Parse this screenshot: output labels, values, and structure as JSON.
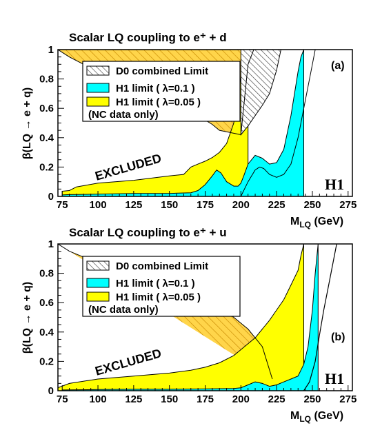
{
  "chart_data": [
    {
      "type": "area",
      "panel": "(a)",
      "title": "Scalar LQ coupling to e⁺ + d",
      "xlabel": "M_LQ (GeV)",
      "ylabel": "β(LQ → e + q)",
      "xlim": [
        72,
        278
      ],
      "ylim": [
        0,
        1
      ],
      "xticks": [
        75,
        100,
        125,
        150,
        175,
        200,
        225,
        250,
        275
      ],
      "yticks": [
        0,
        0.2,
        0.4,
        0.6,
        0.8,
        1
      ],
      "logo": "H1",
      "excluded_label": "EXCLUDED",
      "legend": {
        "d0": "D0 combined Limit",
        "cyan": "H1 limit ( λ=0.1 )",
        "yellow": "H1 limit ( λ=0.05 )",
        "note": "(NC data only)"
      },
      "series": [
        {
          "name": "H1 limit ( λ=0.05 )",
          "color": "#ffff00",
          "x": [
            75,
            80,
            85,
            100,
            125,
            150,
            160,
            165,
            170,
            175,
            180,
            185,
            190,
            195,
            199,
            202,
            205
          ],
          "y": [
            0.035,
            0.04,
            0.065,
            0.09,
            0.11,
            0.14,
            0.15,
            0.2,
            0.22,
            0.24,
            0.265,
            0.3,
            0.36,
            0.5,
            0.75,
            0.92,
            1.0
          ]
        },
        {
          "name": "H1 limit ( λ=0.1 )",
          "color": "#00ffff",
          "x": [
            75,
            80,
            100,
            125,
            150,
            165,
            170,
            175,
            180,
            183,
            186,
            190,
            195,
            198,
            200,
            202,
            205,
            210,
            215,
            220,
            225,
            230,
            235,
            240,
            242,
            244
          ],
          "y": [
            0.01,
            0.012,
            0.015,
            0.02,
            0.02,
            0.025,
            0.04,
            0.08,
            0.14,
            0.18,
            0.16,
            0.1,
            0.07,
            0.07,
            0.09,
            0.14,
            0.22,
            0.28,
            0.26,
            0.22,
            0.23,
            0.32,
            0.55,
            0.85,
            0.95,
            1.0
          ]
        },
        {
          "name": "outer contour",
          "color": "#000000",
          "x": [
            200,
            205,
            210,
            213,
            216,
            220,
            225,
            230,
            235,
            240,
            245,
            250,
            252
          ],
          "y": [
            0.0,
            0.1,
            0.18,
            0.2,
            0.19,
            0.15,
            0.13,
            0.15,
            0.22,
            0.4,
            0.65,
            0.9,
            1.0
          ]
        },
        {
          "name": "D0 combined Limit",
          "color": "hatched",
          "x": [
            200,
            205,
            210,
            215,
            220,
            225,
            228
          ],
          "y": [
            0.42,
            0.48,
            0.55,
            0.62,
            0.7,
            0.86,
            1.0
          ]
        },
        {
          "name": "excluded boundary",
          "color": "#000000",
          "x": [
            72,
            80,
            100,
            125,
            150,
            160,
            170,
            175,
            180,
            185,
            190,
            195,
            200,
            205,
            209
          ],
          "y": [
            1.0,
            0.95,
            0.85,
            0.75,
            0.64,
            0.6,
            0.54,
            0.52,
            0.49,
            0.45,
            0.44,
            0.43,
            0.42,
            0.9,
            1.0
          ]
        }
      ]
    },
    {
      "type": "area",
      "panel": "(b)",
      "title": "Scalar LQ coupling to e⁺ + u",
      "xlabel": "M_LQ (GeV)",
      "ylabel": "β(LQ → e + q)",
      "xlim": [
        72,
        278
      ],
      "ylim": [
        0,
        1
      ],
      "xticks": [
        75,
        100,
        125,
        150,
        175,
        200,
        225,
        250,
        275
      ],
      "yticks": [
        0,
        0.2,
        0.4,
        0.6,
        0.8,
        1
      ],
      "logo": "H1",
      "excluded_label": "EXCLUDED",
      "legend": {
        "d0": "D0 combined Limit",
        "cyan": "H1 limit ( λ=0.1 )",
        "yellow": "H1 limit ( λ=0.05 )",
        "note": "(NC data only)"
      },
      "series": [
        {
          "name": "H1 limit ( λ=0.05 )",
          "color": "#ffff00",
          "x": [
            72,
            80,
            100,
            125,
            150,
            165,
            175,
            185,
            195,
            200,
            205,
            210,
            215,
            220,
            225,
            230,
            235,
            240,
            242,
            244
          ],
          "y": [
            0.02,
            0.05,
            0.08,
            0.1,
            0.12,
            0.14,
            0.16,
            0.19,
            0.24,
            0.28,
            0.32,
            0.36,
            0.42,
            0.48,
            0.55,
            0.62,
            0.72,
            0.82,
            0.92,
            1.0
          ]
        },
        {
          "name": "H1 limit ( λ=0.1 )",
          "color": "#00ffff",
          "x": [
            75,
            100,
            125,
            150,
            175,
            195,
            200,
            205,
            210,
            215,
            220,
            225,
            230,
            235,
            240,
            244,
            247,
            250,
            252,
            254
          ],
          "y": [
            0.005,
            0.008,
            0.01,
            0.01,
            0.012,
            0.015,
            0.02,
            0.04,
            0.06,
            0.05,
            0.03,
            0.04,
            0.06,
            0.08,
            0.1,
            0.18,
            0.3,
            0.55,
            0.8,
            1.0
          ]
        },
        {
          "name": "outer contour",
          "color": "#000000",
          "x": [
            244,
            248,
            252,
            255,
            258,
            261,
            264,
            267
          ],
          "y": [
            0.0,
            0.06,
            0.2,
            0.38,
            0.55,
            0.7,
            0.85,
            1.0
          ]
        },
        {
          "name": "excluded boundary",
          "color": "#000000",
          "x": [
            72,
            80,
            100,
            125,
            150,
            165,
            180,
            195,
            205,
            215,
            222
          ],
          "y": [
            1.0,
            0.95,
            0.87,
            0.8,
            0.72,
            0.68,
            0.6,
            0.5,
            0.42,
            0.3,
            0.08
          ]
        }
      ]
    }
  ]
}
